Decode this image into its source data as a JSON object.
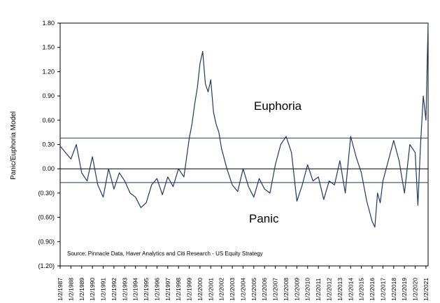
{
  "chart_data": {
    "type": "line",
    "ylabel": "Panic/Euphoria Model",
    "ylim": [
      -1.2,
      1.8
    ],
    "y_ticks": [
      "1.80",
      "1.50",
      "1.20",
      "0.90",
      "0.60",
      "0.30",
      "0.00",
      "(0.30)",
      "(0.60)",
      "(0.90)",
      "(1.20)"
    ],
    "x_ticks": [
      "1/2/1987",
      "1/2/1988",
      "1/2/1989",
      "1/2/1990",
      "1/2/1991",
      "1/2/1992",
      "1/2/1993",
      "1/2/1994",
      "1/2/1995",
      "1/2/1996",
      "1/2/1997",
      "1/2/1998",
      "1/2/1999",
      "1/2/2000",
      "1/2/2001",
      "1/2/2002",
      "1/2/2003",
      "1/2/2004",
      "1/2/2005",
      "1/2/2006",
      "1/2/2007",
      "1/2/2008",
      "1/2/2009",
      "1/2/2010",
      "1/2/2011",
      "1/2/2012",
      "1/2/2013",
      "1/2/2014",
      "1/2/2015",
      "1/2/2016",
      "1/2/2017",
      "1/2/2018",
      "1/2/2019",
      "1/2/2020",
      "1/2/2021"
    ],
    "euphoria_threshold": 0.38,
    "panic_threshold": -0.17,
    "annotations": {
      "euphoria": "Euphoria",
      "panic": "Panic"
    },
    "source": "Source:  Pinnacle Data, Haver Analytics and Citi Research - US Equity Strategy",
    "grid": false,
    "series_color": "#1f3864",
    "series": [
      {
        "x": [
          1987.0,
          1987.5,
          1988.0,
          1988.5,
          1989.0,
          1989.5,
          1990.0,
          1990.5,
          1991.0,
          1991.5,
          1992.0,
          1992.5,
          1993.0,
          1993.5,
          1994.0,
          1994.5,
          1995.0,
          1995.5,
          1996.0,
          1996.5,
          1997.0,
          1997.5,
          1998.0,
          1998.5,
          1999.0,
          1999.25,
          1999.5,
          1999.75,
          2000.0,
          2000.25,
          2000.5,
          2000.75,
          2001.0,
          2001.25,
          2001.5,
          2001.75,
          2002.0,
          2002.5,
          2003.0,
          2003.5,
          2004.0,
          2004.5,
          2005.0,
          2005.5,
          2006.0,
          2006.5,
          2007.0,
          2007.5,
          2008.0,
          2008.5,
          2009.0,
          2009.5,
          2010.0,
          2010.5,
          2011.0,
          2011.5,
          2012.0,
          2012.5,
          2013.0,
          2013.5,
          2014.0,
          2014.5,
          2015.0,
          2015.5,
          2016.0,
          2016.25,
          2016.5,
          2016.75,
          2017.0,
          2017.5,
          2018.0,
          2018.5,
          2019.0,
          2019.5,
          2020.0,
          2020.25,
          2020.5,
          2020.75,
          2021.0,
          2021.2
        ],
        "values": [
          0.28,
          0.2,
          0.12,
          0.3,
          -0.05,
          -0.15,
          0.15,
          -0.2,
          -0.35,
          0.0,
          -0.25,
          -0.05,
          -0.15,
          -0.3,
          -0.35,
          -0.48,
          -0.42,
          -0.2,
          -0.12,
          -0.32,
          -0.1,
          -0.22,
          0.0,
          -0.1,
          0.38,
          0.55,
          0.8,
          1.0,
          1.3,
          1.45,
          1.05,
          0.95,
          1.1,
          0.7,
          0.55,
          0.45,
          0.25,
          0.0,
          -0.2,
          -0.28,
          0.0,
          -0.22,
          -0.35,
          -0.12,
          -0.25,
          -0.3,
          0.05,
          0.3,
          0.4,
          0.2,
          -0.4,
          -0.2,
          0.05,
          -0.15,
          -0.1,
          -0.38,
          -0.15,
          -0.2,
          0.1,
          -0.3,
          0.4,
          0.15,
          -0.05,
          -0.4,
          -0.65,
          -0.72,
          -0.3,
          -0.42,
          -0.15,
          0.1,
          0.35,
          0.1,
          -0.3,
          0.3,
          0.2,
          -0.45,
          0.3,
          0.9,
          0.6,
          1.8
        ]
      }
    ]
  }
}
